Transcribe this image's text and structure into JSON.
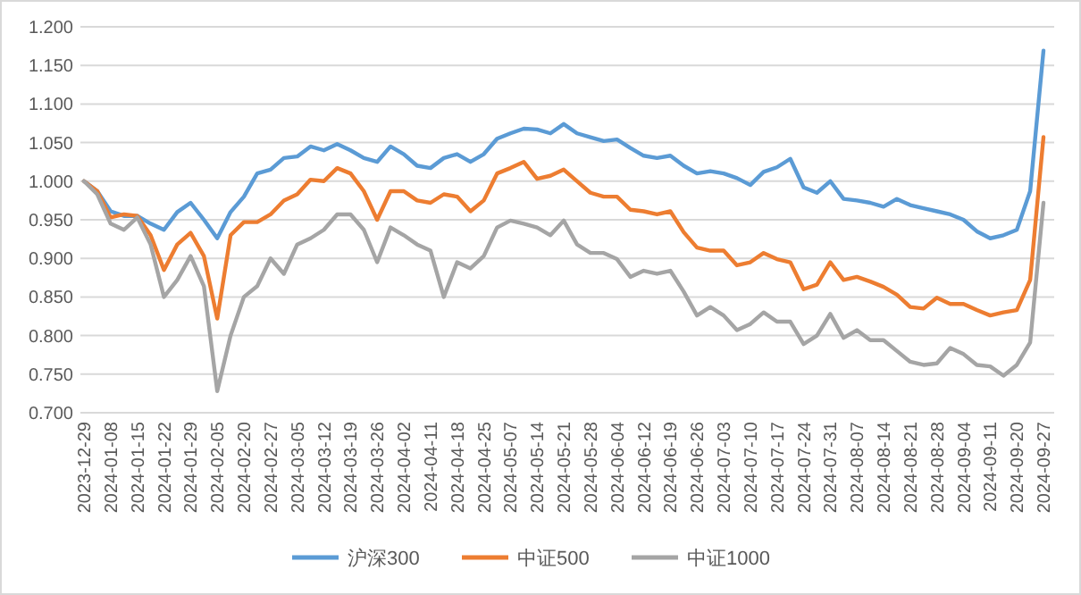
{
  "chart_data": {
    "type": "line",
    "categories": [
      "2023-12-29",
      null,
      "2024-01-08",
      null,
      "2024-01-15",
      null,
      "2024-01-22",
      null,
      "2024-01-29",
      null,
      "2024-02-05",
      null,
      "2024-02-20",
      null,
      "2024-02-27",
      null,
      "2024-03-05",
      null,
      "2024-03-12",
      null,
      "2024-03-19",
      null,
      "2024-03-26",
      null,
      "2024-04-02",
      null,
      "2024-04-11",
      null,
      "2024-04-18",
      null,
      "2024-04-25",
      null,
      "2024-05-07",
      null,
      "2024-05-14",
      null,
      "2024-05-21",
      null,
      "2024-05-28",
      null,
      "2024-06-04",
      null,
      "2024-06-12",
      null,
      "2024-06-19",
      null,
      "2024-06-26",
      null,
      "2024-07-03",
      null,
      "2024-07-10",
      null,
      "2024-07-17",
      null,
      "2024-07-24",
      null,
      "2024-07-31",
      null,
      "2024-08-07",
      null,
      "2024-08-14",
      null,
      "2024-08-21",
      null,
      "2024-08-28",
      null,
      "2024-09-04",
      null,
      "2024-09-11",
      null,
      "2024-09-20",
      null,
      "2024-09-27"
    ],
    "series": [
      {
        "name": "沪深300",
        "color": "#5b9bd5",
        "values": [
          1.0,
          0.987,
          0.961,
          0.955,
          0.955,
          0.945,
          0.937,
          0.96,
          0.972,
          0.95,
          0.926,
          0.96,
          0.98,
          1.01,
          1.015,
          1.03,
          1.032,
          1.045,
          1.04,
          1.048,
          1.04,
          1.03,
          1.025,
          1.045,
          1.035,
          1.02,
          1.017,
          1.03,
          1.035,
          1.025,
          1.035,
          1.055,
          1.062,
          1.068,
          1.067,
          1.062,
          1.074,
          1.062,
          1.057,
          1.052,
          1.054,
          1.043,
          1.033,
          1.03,
          1.033,
          1.02,
          1.01,
          1.013,
          1.01,
          1.004,
          0.995,
          1.012,
          1.018,
          1.029,
          0.992,
          0.985,
          1.0,
          0.977,
          0.975,
          0.972,
          0.967,
          0.977,
          0.969,
          0.965,
          0.961,
          0.957,
          0.95,
          0.935,
          0.926,
          0.93,
          0.937,
          0.987,
          1.169
        ]
      },
      {
        "name": "中证500",
        "color": "#ed7d31",
        "values": [
          1.0,
          0.987,
          0.953,
          0.957,
          0.955,
          0.93,
          0.885,
          0.918,
          0.933,
          0.903,
          0.822,
          0.93,
          0.947,
          0.947,
          0.957,
          0.975,
          0.983,
          1.002,
          1.0,
          1.017,
          1.01,
          0.987,
          0.95,
          0.987,
          0.987,
          0.975,
          0.972,
          0.983,
          0.98,
          0.961,
          0.975,
          1.01,
          1.017,
          1.025,
          1.003,
          1.007,
          1.015,
          1.0,
          0.985,
          0.98,
          0.98,
          0.963,
          0.961,
          0.957,
          0.961,
          0.934,
          0.914,
          0.91,
          0.91,
          0.891,
          0.895,
          0.907,
          0.899,
          0.895,
          0.86,
          0.866,
          0.895,
          0.872,
          0.876,
          0.87,
          0.863,
          0.853,
          0.837,
          0.835,
          0.849,
          0.841,
          0.841,
          0.833,
          0.826,
          0.83,
          0.833,
          0.872,
          1.057
        ]
      },
      {
        "name": "中证1000",
        "color": "#a5a5a5",
        "values": [
          1.0,
          0.983,
          0.945,
          0.937,
          0.953,
          0.918,
          0.85,
          0.872,
          0.903,
          0.864,
          0.728,
          0.8,
          0.85,
          0.864,
          0.9,
          0.88,
          0.918,
          0.926,
          0.937,
          0.957,
          0.957,
          0.937,
          0.895,
          0.94,
          0.93,
          0.918,
          0.91,
          0.85,
          0.895,
          0.887,
          0.903,
          0.94,
          0.949,
          0.945,
          0.94,
          0.93,
          0.949,
          0.918,
          0.907,
          0.907,
          0.899,
          0.876,
          0.884,
          0.88,
          0.884,
          0.857,
          0.826,
          0.837,
          0.826,
          0.807,
          0.815,
          0.83,
          0.818,
          0.818,
          0.789,
          0.8,
          0.828,
          0.797,
          0.807,
          0.794,
          0.794,
          0.78,
          0.766,
          0.762,
          0.764,
          0.784,
          0.776,
          0.762,
          0.76,
          0.748,
          0.762,
          0.791,
          0.972
        ]
      }
    ],
    "ylim": [
      0.7,
      1.2
    ],
    "yticks": [
      {
        "value": 0.7,
        "label": "0.700"
      },
      {
        "value": 0.75,
        "label": "0.750"
      },
      {
        "value": 0.8,
        "label": "0.800"
      },
      {
        "value": 0.85,
        "label": "0.850"
      },
      {
        "value": 0.9,
        "label": "0.900"
      },
      {
        "value": 0.95,
        "label": "0.950"
      },
      {
        "value": 1.0,
        "label": "1.000"
      },
      {
        "value": 1.05,
        "label": "1.050"
      },
      {
        "value": 1.1,
        "label": "1.100"
      },
      {
        "value": 1.15,
        "label": "1.150"
      },
      {
        "value": 1.2,
        "label": "1.200"
      }
    ],
    "grid": "y",
    "legend": "bottom"
  }
}
